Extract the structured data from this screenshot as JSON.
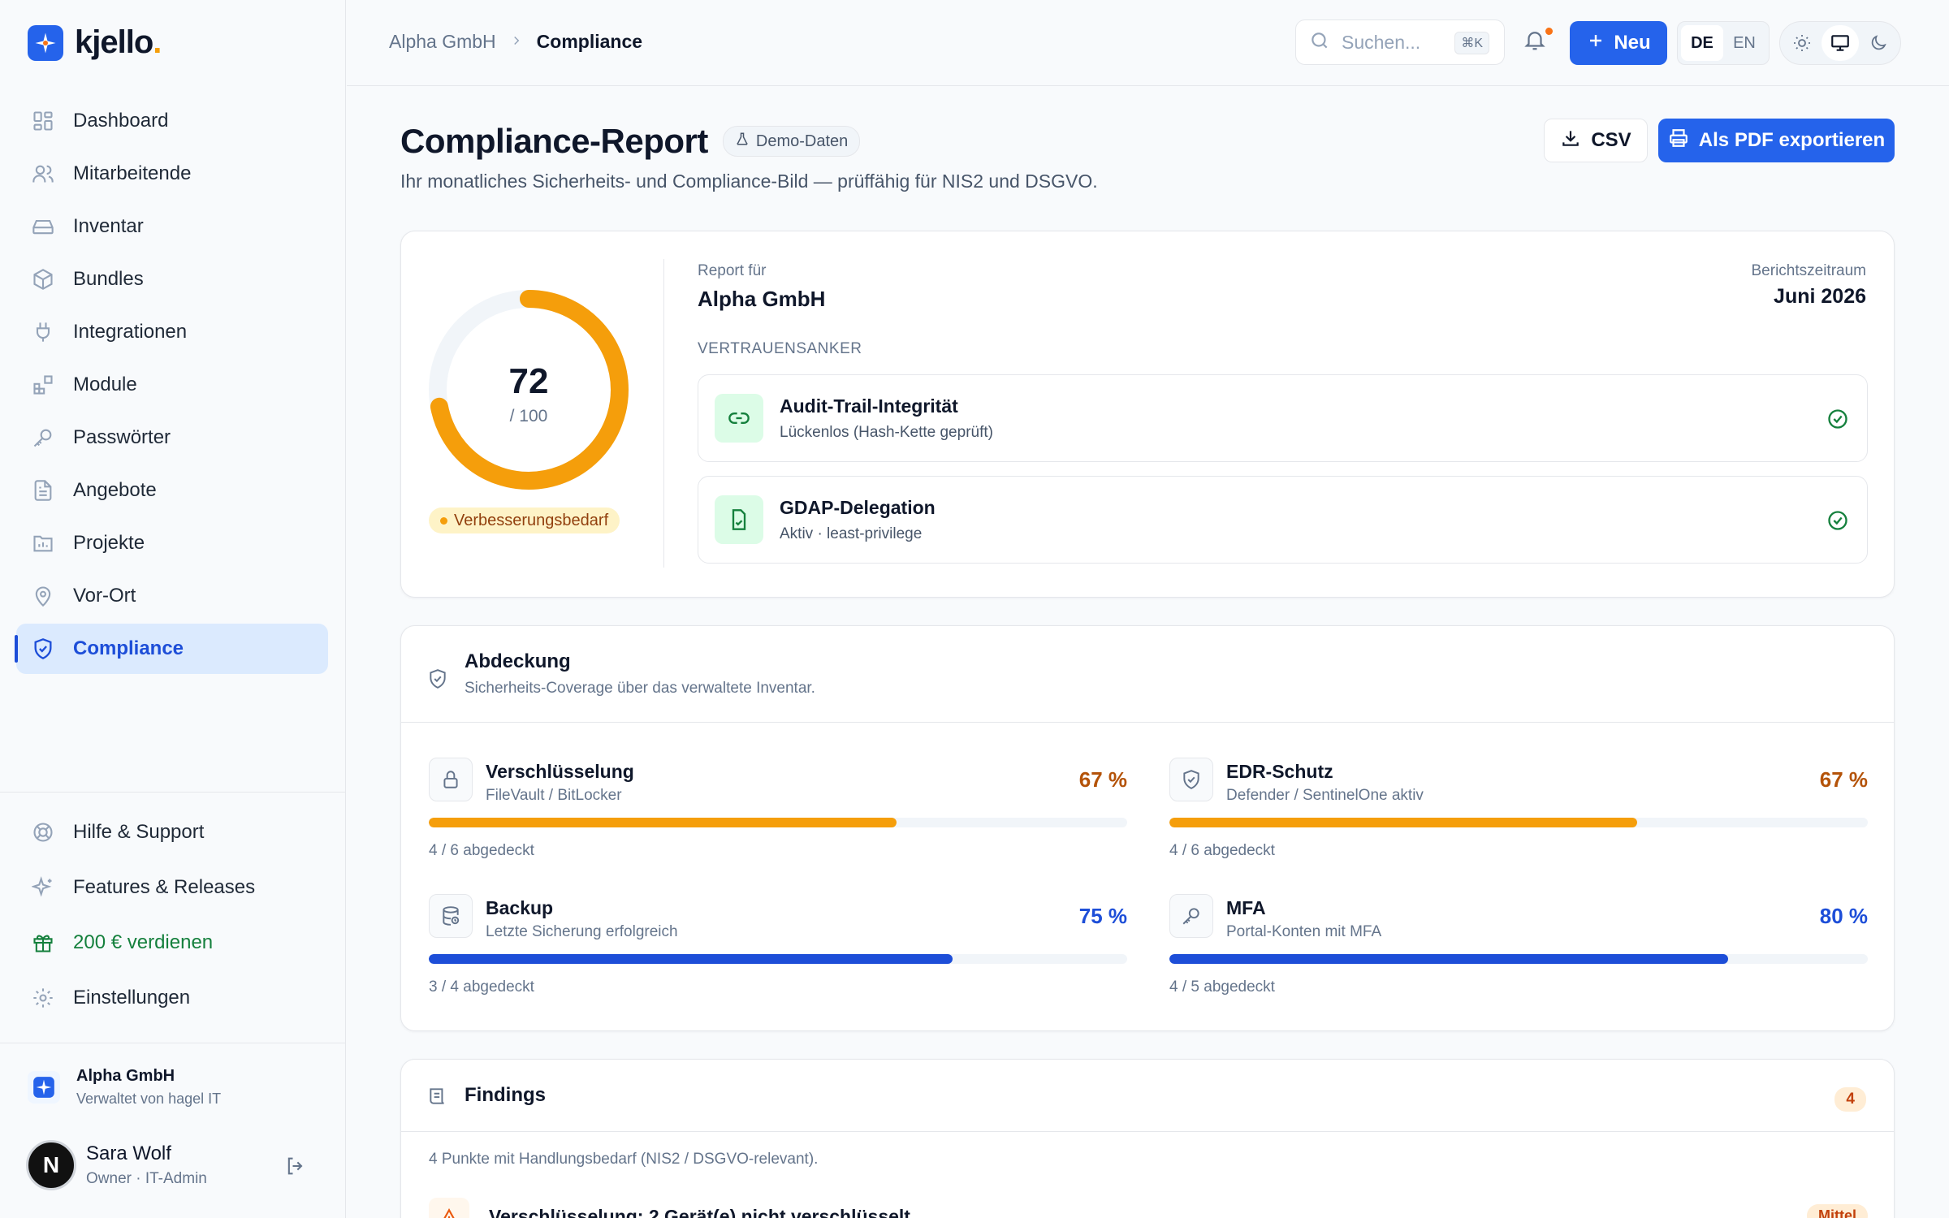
{
  "brand": {
    "name": "kjello",
    "dot": ".",
    "accent": "#2563eb",
    "dot_color": "#f59e0b"
  },
  "sidebar": {
    "items": [
      {
        "label": "Dashboard",
        "icon": "dashboard-icon"
      },
      {
        "label": "Mitarbeitende",
        "icon": "users-icon"
      },
      {
        "label": "Inventar",
        "icon": "drive-icon"
      },
      {
        "label": "Bundles",
        "icon": "package-icon"
      },
      {
        "label": "Integrationen",
        "icon": "plug-icon"
      },
      {
        "label": "Module",
        "icon": "blocks-icon"
      },
      {
        "label": "Passwörter",
        "icon": "key-icon"
      },
      {
        "label": "Angebote",
        "icon": "document-icon"
      },
      {
        "label": "Projekte",
        "icon": "folder-chart-icon"
      },
      {
        "label": "Vor-Ort",
        "icon": "map-pin-icon"
      },
      {
        "label": "Compliance",
        "icon": "shield-check-icon",
        "active": true
      }
    ],
    "bottom": [
      {
        "label": "Hilfe & Support",
        "icon": "lifebuoy-icon"
      },
      {
        "label": "Features & Releases",
        "icon": "sparkles-icon"
      },
      {
        "label": "200 € verdienen",
        "icon": "gift-icon"
      },
      {
        "label": "Einstellungen",
        "icon": "gear-icon"
      }
    ],
    "tenant": {
      "name": "Alpha GmbH",
      "sub": "Verwaltet von hagel IT"
    },
    "user": {
      "initial": "N",
      "name": "Sara Wolf",
      "role": "Owner · IT-Admin"
    }
  },
  "topbar": {
    "breadcrumb": [
      "Alpha GmbH",
      "Compliance"
    ],
    "search_placeholder": "Suchen...",
    "search_shortcut": "⌘K",
    "new_label": "Neu",
    "languages": [
      "DE",
      "EN"
    ],
    "active_language": "DE"
  },
  "header": {
    "title": "Compliance-Report",
    "badge": "Demo-Daten",
    "subtitle": "Ihr monatliches Sicherheits- und Compliance-Bild — prüffähig für NIS2 und DSGVO.",
    "csv_label": "CSV",
    "pdf_label": "Als PDF exportieren"
  },
  "score": {
    "value": "72",
    "max": "/ 100",
    "fraction": 0.72,
    "status": "Verbesserungsbedarf",
    "report_for_label": "Report für",
    "report_for": "Alpha GmbH",
    "period_label": "Berichtszeitraum",
    "period": "Juni 2026",
    "anchors_heading": "VERTRAUENSANKER",
    "anchors": [
      {
        "title": "Audit-Trail-Integrität",
        "sub": "Lückenlos (Hash-Kette geprüft)",
        "icon": "link-icon"
      },
      {
        "title": "GDAP-Delegation",
        "sub": "Aktiv · least-privilege",
        "icon": "file-sign-icon"
      }
    ]
  },
  "coverage": {
    "title": "Abdeckung",
    "subtitle": "Sicherheits-Coverage über das verwaltete Inventar.",
    "metrics": [
      {
        "title": "Verschlüsselung",
        "sub": "FileVault / BitLocker",
        "pct": "67 %",
        "value": 0.67,
        "count": "4 / 6 abgedeckt",
        "color": "#f59e0b",
        "text_color": "#b45309",
        "icon": "lock-icon"
      },
      {
        "title": "EDR-Schutz",
        "sub": "Defender / SentinelOne aktiv",
        "pct": "67 %",
        "value": 0.67,
        "count": "4 / 6 abgedeckt",
        "color": "#f59e0b",
        "text_color": "#b45309",
        "icon": "shield-icon"
      },
      {
        "title": "Backup",
        "sub": "Letzte Sicherung erfolgreich",
        "pct": "75 %",
        "value": 0.75,
        "count": "3 / 4 abgedeckt",
        "color": "#1d4ed8",
        "text_color": "#1d4ed8",
        "icon": "database-icon"
      },
      {
        "title": "MFA",
        "sub": "Portal-Konten mit MFA",
        "pct": "80 %",
        "value": 0.8,
        "count": "4 / 5 abgedeckt",
        "color": "#1d4ed8",
        "text_color": "#1d4ed8",
        "icon": "key-icon"
      }
    ]
  },
  "findings": {
    "title": "Findings",
    "count": "4",
    "intro": "4 Punkte mit Handlungsbedarf (NIS2 / DSGVO-relevant).",
    "first_title": "Verschlüsselung: 2 Gerät(e) nicht verschlüsselt",
    "first_severity": "Mittel"
  }
}
